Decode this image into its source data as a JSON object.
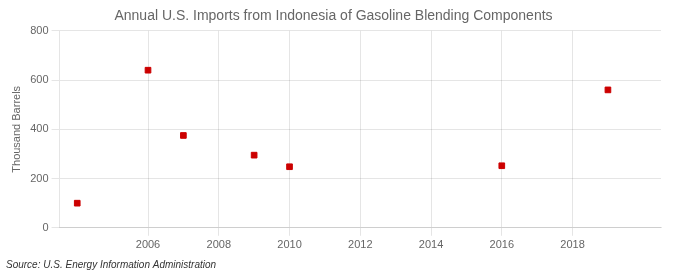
{
  "chart_data": {
    "type": "scatter",
    "title": "Annual U.S. Imports from Indonesia of Gasoline Blending Components",
    "ylabel": "Thousand Barrels",
    "annotations": [
      "Source: U.S. Energy Information Administration"
    ],
    "x": [
      2004,
      2006,
      2007,
      2009,
      2010,
      2016,
      2019
    ],
    "values": [
      100,
      640,
      375,
      295,
      248,
      252,
      560
    ],
    "color": "#cc0000",
    "marker": "square",
    "xlim": [
      2003.5,
      2020.5
    ],
    "ylim": [
      0,
      800
    ],
    "xticks": [
      2006,
      2008,
      2010,
      2012,
      2014,
      2016,
      2018
    ],
    "yticks": [
      0,
      200,
      400,
      600,
      800
    ],
    "grid": true
  }
}
